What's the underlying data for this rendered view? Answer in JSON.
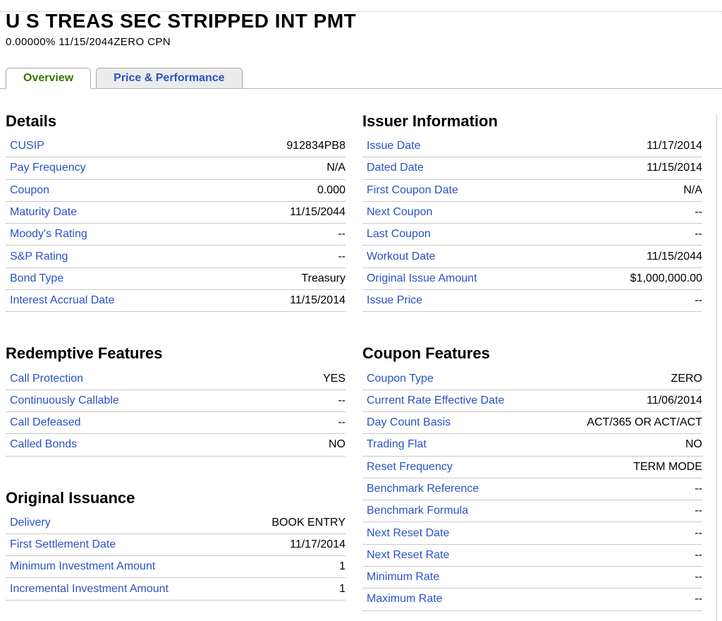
{
  "page": {
    "title": "U S TREAS SEC STRIPPED INT PMT",
    "subtitle": "0.00000% 11/15/2044ZERO CPN"
  },
  "tabs": [
    {
      "label": "Overview",
      "active": true
    },
    {
      "label": "Price & Performance",
      "active": false
    }
  ],
  "colors": {
    "link_blue": "#2a52c4",
    "active_tab_green": "#337700",
    "divider_gray": "#c9c9c9"
  },
  "columns": {
    "left": [
      {
        "heading": "Details",
        "rows": [
          {
            "label": "CUSIP",
            "value": "912834PB8"
          },
          {
            "label": "Pay Frequency",
            "value": "N/A"
          },
          {
            "label": "Coupon",
            "value": "0.000"
          },
          {
            "label": "Maturity Date",
            "value": "11/15/2044"
          },
          {
            "label": "Moody's Rating",
            "value": "--"
          },
          {
            "label": "S&P Rating",
            "value": "--"
          },
          {
            "label": "Bond Type",
            "value": "Treasury"
          },
          {
            "label": "Interest Accrual Date",
            "value": "11/15/2014"
          }
        ]
      },
      {
        "heading": "Redemptive Features",
        "rows": [
          {
            "label": "Call Protection",
            "value": "YES"
          },
          {
            "label": "Continuously Callable",
            "value": "--"
          },
          {
            "label": "Call Defeased",
            "value": "--"
          },
          {
            "label": "Called Bonds",
            "value": "NO"
          }
        ]
      },
      {
        "heading": "Original Issuance",
        "rows": [
          {
            "label": "Delivery",
            "value": "BOOK ENTRY"
          },
          {
            "label": "First Settlement Date",
            "value": "11/17/2014"
          },
          {
            "label": "Minimum Investment Amount",
            "value": "1"
          },
          {
            "label": "Incremental Investment Amount",
            "value": "1"
          }
        ]
      }
    ],
    "right": [
      {
        "heading": "Issuer Information",
        "rows": [
          {
            "label": "Issue Date",
            "value": "11/17/2014"
          },
          {
            "label": "Dated Date",
            "value": "11/15/2014"
          },
          {
            "label": "First Coupon Date",
            "value": "N/A"
          },
          {
            "label": "Next Coupon",
            "value": "--"
          },
          {
            "label": "Last Coupon",
            "value": "--"
          },
          {
            "label": "Workout Date",
            "value": "11/15/2044"
          },
          {
            "label": "Original Issue Amount",
            "value": "$1,000,000.00"
          },
          {
            "label": "Issue Price",
            "value": "--"
          }
        ]
      },
      {
        "heading": "Coupon Features",
        "rows": [
          {
            "label": "Coupon Type",
            "value": "ZERO"
          },
          {
            "label": "Current Rate Effective Date",
            "value": "11/06/2014"
          },
          {
            "label": "Day Count Basis",
            "value": "ACT/365 OR ACT/ACT"
          },
          {
            "label": "Trading Flat",
            "value": "NO"
          },
          {
            "label": "Reset Frequency",
            "value": "TERM MODE"
          },
          {
            "label": "Benchmark Reference",
            "value": "--"
          },
          {
            "label": "Benchmark Formula",
            "value": "--"
          },
          {
            "label": "Next Reset Date",
            "value": "--"
          },
          {
            "label": "Next Reset Rate",
            "value": "--"
          },
          {
            "label": "Minimum Rate",
            "value": "--"
          },
          {
            "label": "Maximum Rate",
            "value": "--"
          }
        ]
      }
    ]
  }
}
